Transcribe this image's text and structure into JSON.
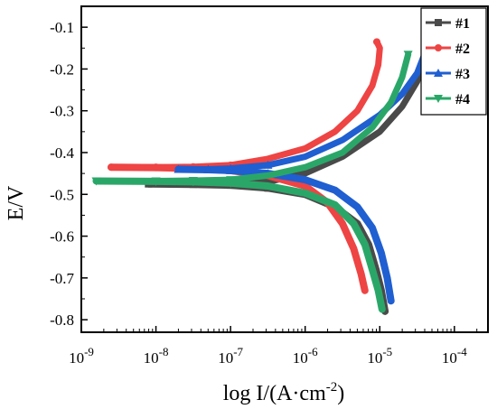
{
  "chart_data": {
    "type": "line",
    "xlabel_main": "log I/(A·cm",
    "xlabel_sup": "-2",
    "xlabel_tail": ")",
    "ylabel": "E/V",
    "x_scale": "log",
    "xlim_exp": [
      -9,
      -3.55
    ],
    "ylim": [
      -0.83,
      -0.05
    ],
    "x_ticks": [
      {
        "base": "10",
        "exp": "-9",
        "value": -9
      },
      {
        "base": "10",
        "exp": "-8",
        "value": -8
      },
      {
        "base": "10",
        "exp": "-7",
        "value": -7
      },
      {
        "base": "10",
        "exp": "-6",
        "value": -6
      },
      {
        "base": "10",
        "exp": "-5",
        "value": -5
      },
      {
        "base": "10",
        "exp": "-4",
        "value": -4
      }
    ],
    "y_ticks": [
      "-0.1",
      "-0.2",
      "-0.3",
      "-0.4",
      "-0.5",
      "-0.6",
      "-0.7",
      "-0.8"
    ],
    "y_tick_values": [
      -0.1,
      -0.2,
      -0.3,
      -0.4,
      -0.5,
      -0.6,
      -0.7,
      -0.8
    ],
    "legend_position": "top-right",
    "series": [
      {
        "name": "#1",
        "color": "#4a4a4a",
        "marker": "square",
        "ecorr": -0.475,
        "anodic": [
          [
            -8.1,
            -0.475
          ],
          [
            -7.5,
            -0.475
          ],
          [
            -7.0,
            -0.475
          ],
          [
            -6.5,
            -0.47
          ],
          [
            -6.0,
            -0.45
          ],
          [
            -5.5,
            -0.41
          ],
          [
            -5.0,
            -0.35
          ],
          [
            -4.7,
            -0.29
          ],
          [
            -4.5,
            -0.23
          ],
          [
            -4.4,
            -0.17
          ]
        ],
        "cathodic": [
          [
            -8.1,
            -0.475
          ],
          [
            -7.5,
            -0.476
          ],
          [
            -7.0,
            -0.478
          ],
          [
            -6.5,
            -0.485
          ],
          [
            -6.0,
            -0.5
          ],
          [
            -5.6,
            -0.53
          ],
          [
            -5.3,
            -0.57
          ],
          [
            -5.15,
            -0.62
          ],
          [
            -5.05,
            -0.68
          ],
          [
            -4.98,
            -0.73
          ],
          [
            -4.93,
            -0.78
          ]
        ]
      },
      {
        "name": "#2",
        "color": "#ee4444",
        "marker": "circle",
        "ecorr": -0.435,
        "anodic": [
          [
            -8.6,
            -0.435
          ],
          [
            -8.0,
            -0.435
          ],
          [
            -7.5,
            -0.434
          ],
          [
            -7.0,
            -0.43
          ],
          [
            -6.5,
            -0.415
          ],
          [
            -6.0,
            -0.39
          ],
          [
            -5.6,
            -0.35
          ],
          [
            -5.3,
            -0.3
          ],
          [
            -5.1,
            -0.24
          ],
          [
            -5.02,
            -0.19
          ],
          [
            -5.0,
            -0.15
          ],
          [
            -5.04,
            -0.135
          ]
        ],
        "cathodic": [
          [
            -8.6,
            -0.435
          ],
          [
            -8.0,
            -0.436
          ],
          [
            -7.5,
            -0.438
          ],
          [
            -7.0,
            -0.443
          ],
          [
            -6.5,
            -0.455
          ],
          [
            -6.0,
            -0.48
          ],
          [
            -5.7,
            -0.52
          ],
          [
            -5.5,
            -0.57
          ],
          [
            -5.35,
            -0.63
          ],
          [
            -5.25,
            -0.69
          ],
          [
            -5.2,
            -0.73
          ]
        ]
      },
      {
        "name": "#3",
        "color": "#1f5fd1",
        "marker": "triangle-up",
        "ecorr": -0.44,
        "anodic": [
          [
            -7.7,
            -0.44
          ],
          [
            -7.3,
            -0.44
          ],
          [
            -7.0,
            -0.438
          ],
          [
            -6.5,
            -0.43
          ],
          [
            -6.0,
            -0.41
          ],
          [
            -5.5,
            -0.37
          ],
          [
            -5.0,
            -0.31
          ],
          [
            -4.7,
            -0.26
          ],
          [
            -4.5,
            -0.21
          ],
          [
            -4.38,
            -0.155
          ]
        ],
        "cathodic": [
          [
            -7.7,
            -0.44
          ],
          [
            -7.3,
            -0.441
          ],
          [
            -7.0,
            -0.443
          ],
          [
            -6.5,
            -0.45
          ],
          [
            -6.0,
            -0.465
          ],
          [
            -5.6,
            -0.49
          ],
          [
            -5.3,
            -0.53
          ],
          [
            -5.1,
            -0.58
          ],
          [
            -4.98,
            -0.64
          ],
          [
            -4.9,
            -0.7
          ],
          [
            -4.85,
            -0.755
          ]
        ]
      },
      {
        "name": "#4",
        "color": "#2aa768",
        "marker": "triangle-down",
        "ecorr": -0.468,
        "anodic": [
          [
            -8.8,
            -0.468
          ],
          [
            -8.0,
            -0.468
          ],
          [
            -7.5,
            -0.467
          ],
          [
            -7.0,
            -0.465
          ],
          [
            -6.5,
            -0.455
          ],
          [
            -6.0,
            -0.435
          ],
          [
            -5.5,
            -0.4
          ],
          [
            -5.1,
            -0.34
          ],
          [
            -4.85,
            -0.28
          ],
          [
            -4.7,
            -0.22
          ],
          [
            -4.62,
            -0.165
          ]
        ],
        "cathodic": [
          [
            -8.8,
            -0.468
          ],
          [
            -8.0,
            -0.469
          ],
          [
            -7.5,
            -0.47
          ],
          [
            -7.0,
            -0.473
          ],
          [
            -6.5,
            -0.48
          ],
          [
            -6.0,
            -0.497
          ],
          [
            -5.6,
            -0.525
          ],
          [
            -5.35,
            -0.57
          ],
          [
            -5.2,
            -0.62
          ],
          [
            -5.1,
            -0.68
          ],
          [
            -5.02,
            -0.73
          ],
          [
            -4.97,
            -0.775
          ]
        ]
      }
    ]
  }
}
